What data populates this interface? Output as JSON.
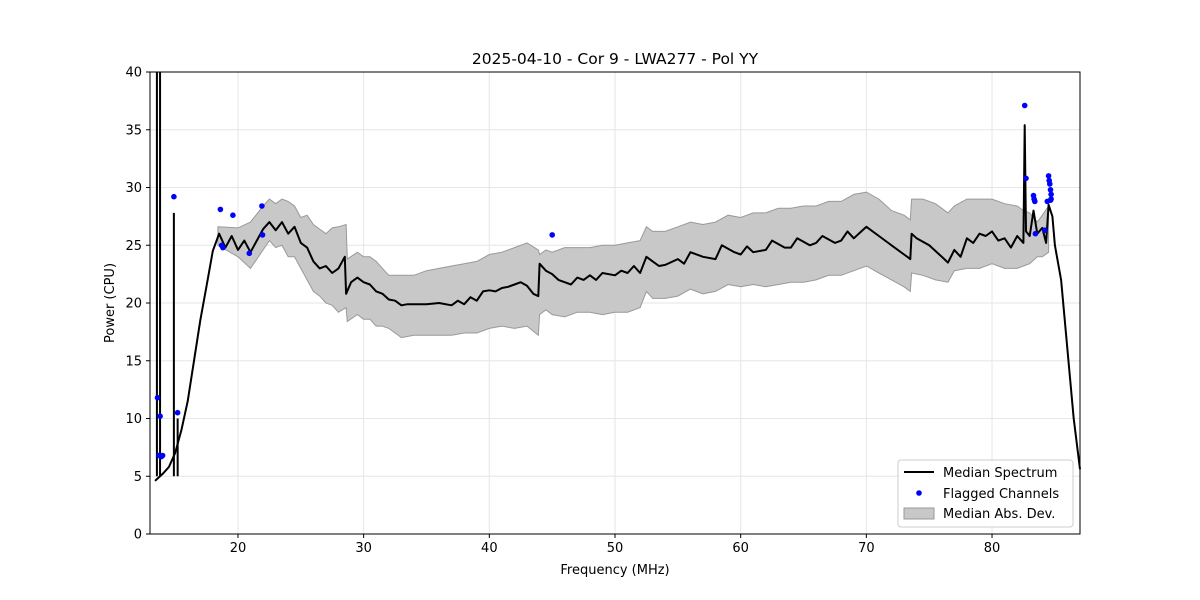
{
  "chart_data": {
    "type": "line",
    "title": "2025-04-10 - Cor 9 - LWA277 - Pol YY",
    "xlabel": "Frequency (MHz)",
    "ylabel": "Power (CPU)",
    "xlim": [
      13.0,
      87.0
    ],
    "ylim": [
      0,
      40
    ],
    "x_ticks": [
      20,
      30,
      40,
      50,
      60,
      70,
      80
    ],
    "y_ticks": [
      0,
      5,
      10,
      15,
      20,
      25,
      30,
      35,
      40
    ],
    "grid": true,
    "legend_position": "lower-right",
    "legend": [
      "Median Spectrum",
      "Flagged Channels",
      "Median Abs. Dev."
    ],
    "colors": {
      "median": "#000000",
      "flagged": "#0000ff",
      "mad_fill": "#c8c8c8",
      "mad_edge": "#999999",
      "grid": "#e6e6e6"
    },
    "series": [
      {
        "name": "Median Spectrum",
        "points": [
          [
            13.4,
            4.6
          ],
          [
            13.7,
            4.9
          ],
          [
            14.0,
            5.2
          ],
          [
            14.5,
            5.8
          ],
          [
            15.0,
            7.0
          ],
          [
            15.5,
            9.0
          ],
          [
            16.0,
            11.5
          ],
          [
            16.5,
            15.0
          ],
          [
            17.0,
            18.5
          ],
          [
            17.5,
            21.5
          ],
          [
            18.0,
            24.5
          ],
          [
            18.5,
            26.0
          ],
          [
            19.0,
            24.8
          ],
          [
            19.5,
            25.8
          ],
          [
            20.0,
            24.6
          ],
          [
            20.5,
            25.4
          ],
          [
            21.0,
            24.4
          ],
          [
            21.5,
            25.4
          ],
          [
            22.0,
            26.4
          ],
          [
            22.5,
            27.0
          ],
          [
            23.0,
            26.3
          ],
          [
            23.5,
            27.0
          ],
          [
            24.0,
            26.0
          ],
          [
            24.5,
            26.6
          ],
          [
            25.0,
            25.2
          ],
          [
            25.5,
            24.8
          ],
          [
            26.0,
            23.6
          ],
          [
            26.5,
            23.0
          ],
          [
            27.0,
            23.2
          ],
          [
            27.5,
            22.6
          ],
          [
            28.0,
            23.0
          ],
          [
            28.5,
            24.0
          ],
          [
            28.6,
            20.8
          ],
          [
            29.0,
            21.8
          ],
          [
            29.5,
            22.2
          ],
          [
            30.0,
            21.8
          ],
          [
            30.5,
            21.6
          ],
          [
            31.0,
            21.0
          ],
          [
            31.5,
            20.8
          ],
          [
            32.0,
            20.3
          ],
          [
            32.5,
            20.2
          ],
          [
            33.0,
            19.8
          ],
          [
            33.5,
            19.9
          ],
          [
            34.0,
            19.9
          ],
          [
            35.0,
            19.9
          ],
          [
            36.0,
            20.0
          ],
          [
            37.0,
            19.8
          ],
          [
            37.5,
            20.2
          ],
          [
            38.0,
            19.9
          ],
          [
            38.5,
            20.5
          ],
          [
            39.0,
            20.2
          ],
          [
            39.5,
            21.0
          ],
          [
            40.0,
            21.1
          ],
          [
            40.5,
            21.0
          ],
          [
            41.0,
            21.3
          ],
          [
            41.5,
            21.4
          ],
          [
            42.0,
            21.6
          ],
          [
            42.5,
            21.8
          ],
          [
            43.0,
            21.5
          ],
          [
            43.5,
            20.8
          ],
          [
            43.9,
            20.6
          ],
          [
            44.0,
            23.4
          ],
          [
            44.5,
            22.8
          ],
          [
            45.0,
            22.5
          ],
          [
            45.5,
            22.0
          ],
          [
            46.0,
            21.8
          ],
          [
            46.5,
            21.6
          ],
          [
            47.0,
            22.2
          ],
          [
            47.5,
            22.0
          ],
          [
            48.0,
            22.4
          ],
          [
            48.5,
            22.0
          ],
          [
            49.0,
            22.6
          ],
          [
            50.0,
            22.4
          ],
          [
            50.5,
            22.8
          ],
          [
            51.0,
            22.6
          ],
          [
            51.5,
            23.2
          ],
          [
            52.0,
            22.6
          ],
          [
            52.5,
            24.0
          ],
          [
            53.0,
            23.6
          ],
          [
            53.5,
            23.2
          ],
          [
            54.0,
            23.3
          ],
          [
            55.0,
            23.8
          ],
          [
            55.5,
            23.4
          ],
          [
            56.0,
            24.4
          ],
          [
            57.0,
            24.0
          ],
          [
            58.0,
            23.8
          ],
          [
            58.5,
            25.0
          ],
          [
            59.5,
            24.4
          ],
          [
            60.0,
            24.2
          ],
          [
            60.5,
            24.9
          ],
          [
            61.0,
            24.4
          ],
          [
            62.0,
            24.6
          ],
          [
            62.5,
            25.4
          ],
          [
            63.5,
            24.8
          ],
          [
            64.0,
            24.8
          ],
          [
            64.5,
            25.6
          ],
          [
            65.5,
            25.0
          ],
          [
            66.0,
            25.2
          ],
          [
            66.5,
            25.8
          ],
          [
            67.5,
            25.2
          ],
          [
            68.0,
            25.4
          ],
          [
            68.5,
            26.2
          ],
          [
            69.0,
            25.6
          ],
          [
            69.5,
            26.1
          ],
          [
            70.0,
            26.6
          ],
          [
            71.0,
            25.8
          ],
          [
            72.0,
            25.0
          ],
          [
            73.0,
            24.2
          ],
          [
            73.5,
            23.8
          ],
          [
            73.6,
            26.0
          ],
          [
            74.0,
            25.6
          ],
          [
            75.0,
            25.0
          ],
          [
            76.0,
            24.0
          ],
          [
            76.5,
            23.5
          ],
          [
            77.0,
            24.6
          ],
          [
            77.5,
            24.0
          ],
          [
            78.0,
            25.6
          ],
          [
            78.5,
            25.2
          ],
          [
            79.0,
            26.0
          ],
          [
            79.5,
            25.8
          ],
          [
            80.0,
            26.2
          ],
          [
            80.5,
            25.4
          ],
          [
            81.0,
            25.6
          ],
          [
            81.5,
            24.8
          ],
          [
            82.0,
            25.8
          ],
          [
            82.5,
            25.2
          ],
          [
            82.6,
            35.4
          ],
          [
            82.7,
            26.2
          ],
          [
            83.0,
            25.8
          ],
          [
            83.3,
            28.0
          ],
          [
            83.6,
            26.0
          ],
          [
            84.0,
            26.5
          ],
          [
            84.3,
            25.2
          ],
          [
            84.5,
            28.5
          ],
          [
            84.8,
            27.5
          ],
          [
            85.0,
            25.0
          ],
          [
            85.5,
            22.0
          ],
          [
            86.0,
            16.0
          ],
          [
            86.5,
            10.0
          ],
          [
            87.0,
            5.6
          ]
        ]
      }
    ],
    "spikes": [
      {
        "x": 13.55,
        "y": 40.0
      },
      {
        "x": 13.8,
        "y": 40.0
      },
      {
        "x": 14.9,
        "y": 27.8
      },
      {
        "x": 15.2,
        "y": 10.0
      }
    ],
    "mad_band": {
      "upper": [
        [
          18.4,
          26.6
        ],
        [
          20.0,
          26.5
        ],
        [
          21.0,
          27.0
        ],
        [
          22.0,
          28.4
        ],
        [
          22.5,
          29.0
        ],
        [
          23.0,
          28.6
        ],
        [
          23.5,
          29.0
        ],
        [
          24.0,
          28.8
        ],
        [
          24.5,
          28.4
        ],
        [
          25.0,
          27.4
        ],
        [
          25.5,
          27.6
        ],
        [
          26.0,
          26.8
        ],
        [
          26.5,
          26.4
        ],
        [
          27.0,
          26.0
        ],
        [
          27.5,
          26.5
        ],
        [
          28.0,
          26.6
        ],
        [
          28.6,
          26.8
        ],
        [
          28.7,
          23.8
        ],
        [
          29.5,
          24.4
        ],
        [
          30.0,
          24.0
        ],
        [
          30.5,
          24.0
        ],
        [
          31.0,
          23.6
        ],
        [
          31.5,
          23.0
        ],
        [
          32.0,
          22.4
        ],
        [
          33.0,
          22.4
        ],
        [
          34.0,
          22.4
        ],
        [
          35.0,
          22.8
        ],
        [
          36.0,
          23.0
        ],
        [
          37.0,
          23.2
        ],
        [
          38.0,
          23.4
        ],
        [
          39.0,
          23.6
        ],
        [
          40.0,
          24.2
        ],
        [
          41.0,
          24.4
        ],
        [
          42.0,
          24.8
        ],
        [
          43.0,
          25.2
        ],
        [
          43.9,
          24.6
        ],
        [
          44.0,
          24.2
        ],
        [
          44.5,
          24.6
        ],
        [
          45.0,
          24.4
        ],
        [
          46.0,
          24.8
        ],
        [
          47.0,
          24.8
        ],
        [
          48.0,
          24.8
        ],
        [
          49.0,
          25.0
        ],
        [
          50.0,
          25.0
        ],
        [
          51.0,
          25.2
        ],
        [
          52.0,
          25.4
        ],
        [
          52.5,
          26.6
        ],
        [
          53.0,
          26.2
        ],
        [
          54.0,
          26.2
        ],
        [
          55.0,
          26.6
        ],
        [
          56.0,
          27.0
        ],
        [
          57.0,
          26.8
        ],
        [
          58.0,
          27.0
        ],
        [
          59.0,
          27.6
        ],
        [
          60.0,
          27.4
        ],
        [
          61.0,
          27.8
        ],
        [
          62.0,
          27.8
        ],
        [
          63.0,
          28.2
        ],
        [
          64.0,
          28.2
        ],
        [
          65.0,
          28.4
        ],
        [
          66.0,
          28.4
        ],
        [
          67.0,
          28.8
        ],
        [
          68.0,
          28.8
        ],
        [
          69.0,
          29.4
        ],
        [
          70.0,
          29.6
        ],
        [
          71.0,
          29.0
        ],
        [
          72.0,
          28.0
        ],
        [
          73.0,
          27.6
        ],
        [
          73.5,
          27.2
        ],
        [
          73.6,
          29.0
        ],
        [
          74.5,
          29.0
        ],
        [
          75.5,
          28.6
        ],
        [
          76.5,
          27.8
        ],
        [
          77.0,
          28.4
        ],
        [
          78.0,
          29.0
        ],
        [
          79.0,
          29.0
        ],
        [
          80.0,
          29.0
        ],
        [
          81.0,
          28.6
        ],
        [
          82.0,
          28.4
        ],
        [
          82.5,
          28.0
        ],
        [
          83.0,
          27.8
        ],
        [
          83.6,
          27.0
        ],
        [
          84.0,
          27.6
        ],
        [
          84.5,
          28.4
        ]
      ],
      "lower": [
        [
          18.4,
          25.0
        ],
        [
          20.0,
          24.0
        ],
        [
          21.0,
          23.0
        ],
        [
          22.0,
          24.6
        ],
        [
          22.5,
          25.4
        ],
        [
          23.0,
          24.8
        ],
        [
          23.5,
          25.0
        ],
        [
          24.0,
          24.0
        ],
        [
          24.5,
          24.0
        ],
        [
          25.0,
          23.0
        ],
        [
          25.5,
          22.0
        ],
        [
          26.0,
          21.0
        ],
        [
          26.5,
          20.6
        ],
        [
          27.0,
          20.0
        ],
        [
          27.5,
          19.8
        ],
        [
          28.0,
          19.2
        ],
        [
          28.6,
          19.6
        ],
        [
          28.7,
          18.4
        ],
        [
          29.5,
          19.0
        ],
        [
          30.0,
          18.6
        ],
        [
          30.5,
          18.6
        ],
        [
          31.0,
          18.0
        ],
        [
          31.5,
          18.0
        ],
        [
          32.0,
          17.8
        ],
        [
          33.0,
          17.0
        ],
        [
          34.0,
          17.2
        ],
        [
          35.0,
          17.2
        ],
        [
          36.0,
          17.2
        ],
        [
          37.0,
          17.2
        ],
        [
          38.0,
          17.4
        ],
        [
          39.0,
          17.4
        ],
        [
          40.0,
          17.8
        ],
        [
          41.0,
          18.0
        ],
        [
          42.0,
          17.8
        ],
        [
          43.0,
          18.0
        ],
        [
          43.9,
          17.2
        ],
        [
          44.0,
          19.0
        ],
        [
          44.5,
          19.4
        ],
        [
          45.0,
          19.0
        ],
        [
          46.0,
          18.8
        ],
        [
          47.0,
          19.2
        ],
        [
          48.0,
          19.2
        ],
        [
          49.0,
          19.0
        ],
        [
          50.0,
          19.2
        ],
        [
          51.0,
          19.2
        ],
        [
          52.0,
          19.6
        ],
        [
          52.5,
          21.0
        ],
        [
          53.0,
          20.4
        ],
        [
          54.0,
          20.4
        ],
        [
          55.0,
          20.6
        ],
        [
          56.0,
          21.2
        ],
        [
          57.0,
          20.8
        ],
        [
          58.0,
          21.0
        ],
        [
          59.0,
          21.6
        ],
        [
          60.0,
          21.4
        ],
        [
          61.0,
          21.6
        ],
        [
          62.0,
          21.4
        ],
        [
          63.0,
          21.6
        ],
        [
          64.0,
          21.8
        ],
        [
          65.0,
          21.8
        ],
        [
          66.0,
          22.0
        ],
        [
          67.0,
          22.4
        ],
        [
          68.0,
          22.4
        ],
        [
          69.0,
          22.8
        ],
        [
          70.0,
          23.2
        ],
        [
          71.0,
          22.6
        ],
        [
          72.0,
          22.0
        ],
        [
          73.0,
          21.4
        ],
        [
          73.5,
          21.0
        ],
        [
          73.6,
          22.6
        ],
        [
          74.5,
          22.4
        ],
        [
          75.5,
          22.0
        ],
        [
          76.5,
          21.8
        ],
        [
          77.0,
          22.8
        ],
        [
          78.0,
          23.0
        ],
        [
          79.0,
          23.0
        ],
        [
          80.0,
          23.4
        ],
        [
          81.0,
          23.0
        ],
        [
          82.0,
          23.0
        ],
        [
          82.5,
          23.2
        ],
        [
          83.0,
          23.4
        ],
        [
          83.6,
          24.0
        ],
        [
          84.0,
          24.0
        ],
        [
          84.5,
          24.4
        ]
      ]
    },
    "flagged_channels": [
      [
        13.6,
        11.8
      ],
      [
        13.7,
        6.8
      ],
      [
        13.8,
        10.2
      ],
      [
        13.9,
        6.7
      ],
      [
        14.0,
        6.8
      ],
      [
        14.9,
        29.2
      ],
      [
        15.2,
        10.5
      ],
      [
        18.6,
        28.1
      ],
      [
        18.7,
        25.0
      ],
      [
        18.8,
        24.8
      ],
      [
        19.6,
        27.6
      ],
      [
        20.9,
        24.3
      ],
      [
        21.9,
        28.4
      ],
      [
        21.95,
        25.9
      ],
      [
        45.0,
        25.9
      ],
      [
        82.6,
        37.1
      ],
      [
        82.7,
        30.8
      ],
      [
        83.3,
        29.3
      ],
      [
        83.35,
        29.0
      ],
      [
        83.4,
        28.8
      ],
      [
        83.45,
        26.0
      ],
      [
        84.2,
        26.3
      ],
      [
        84.4,
        28.8
      ],
      [
        84.5,
        31.0
      ],
      [
        84.55,
        30.6
      ],
      [
        84.6,
        30.3
      ],
      [
        84.65,
        29.8
      ],
      [
        84.7,
        29.4
      ],
      [
        84.7,
        29.0
      ],
      [
        84.65,
        28.9
      ]
    ]
  }
}
